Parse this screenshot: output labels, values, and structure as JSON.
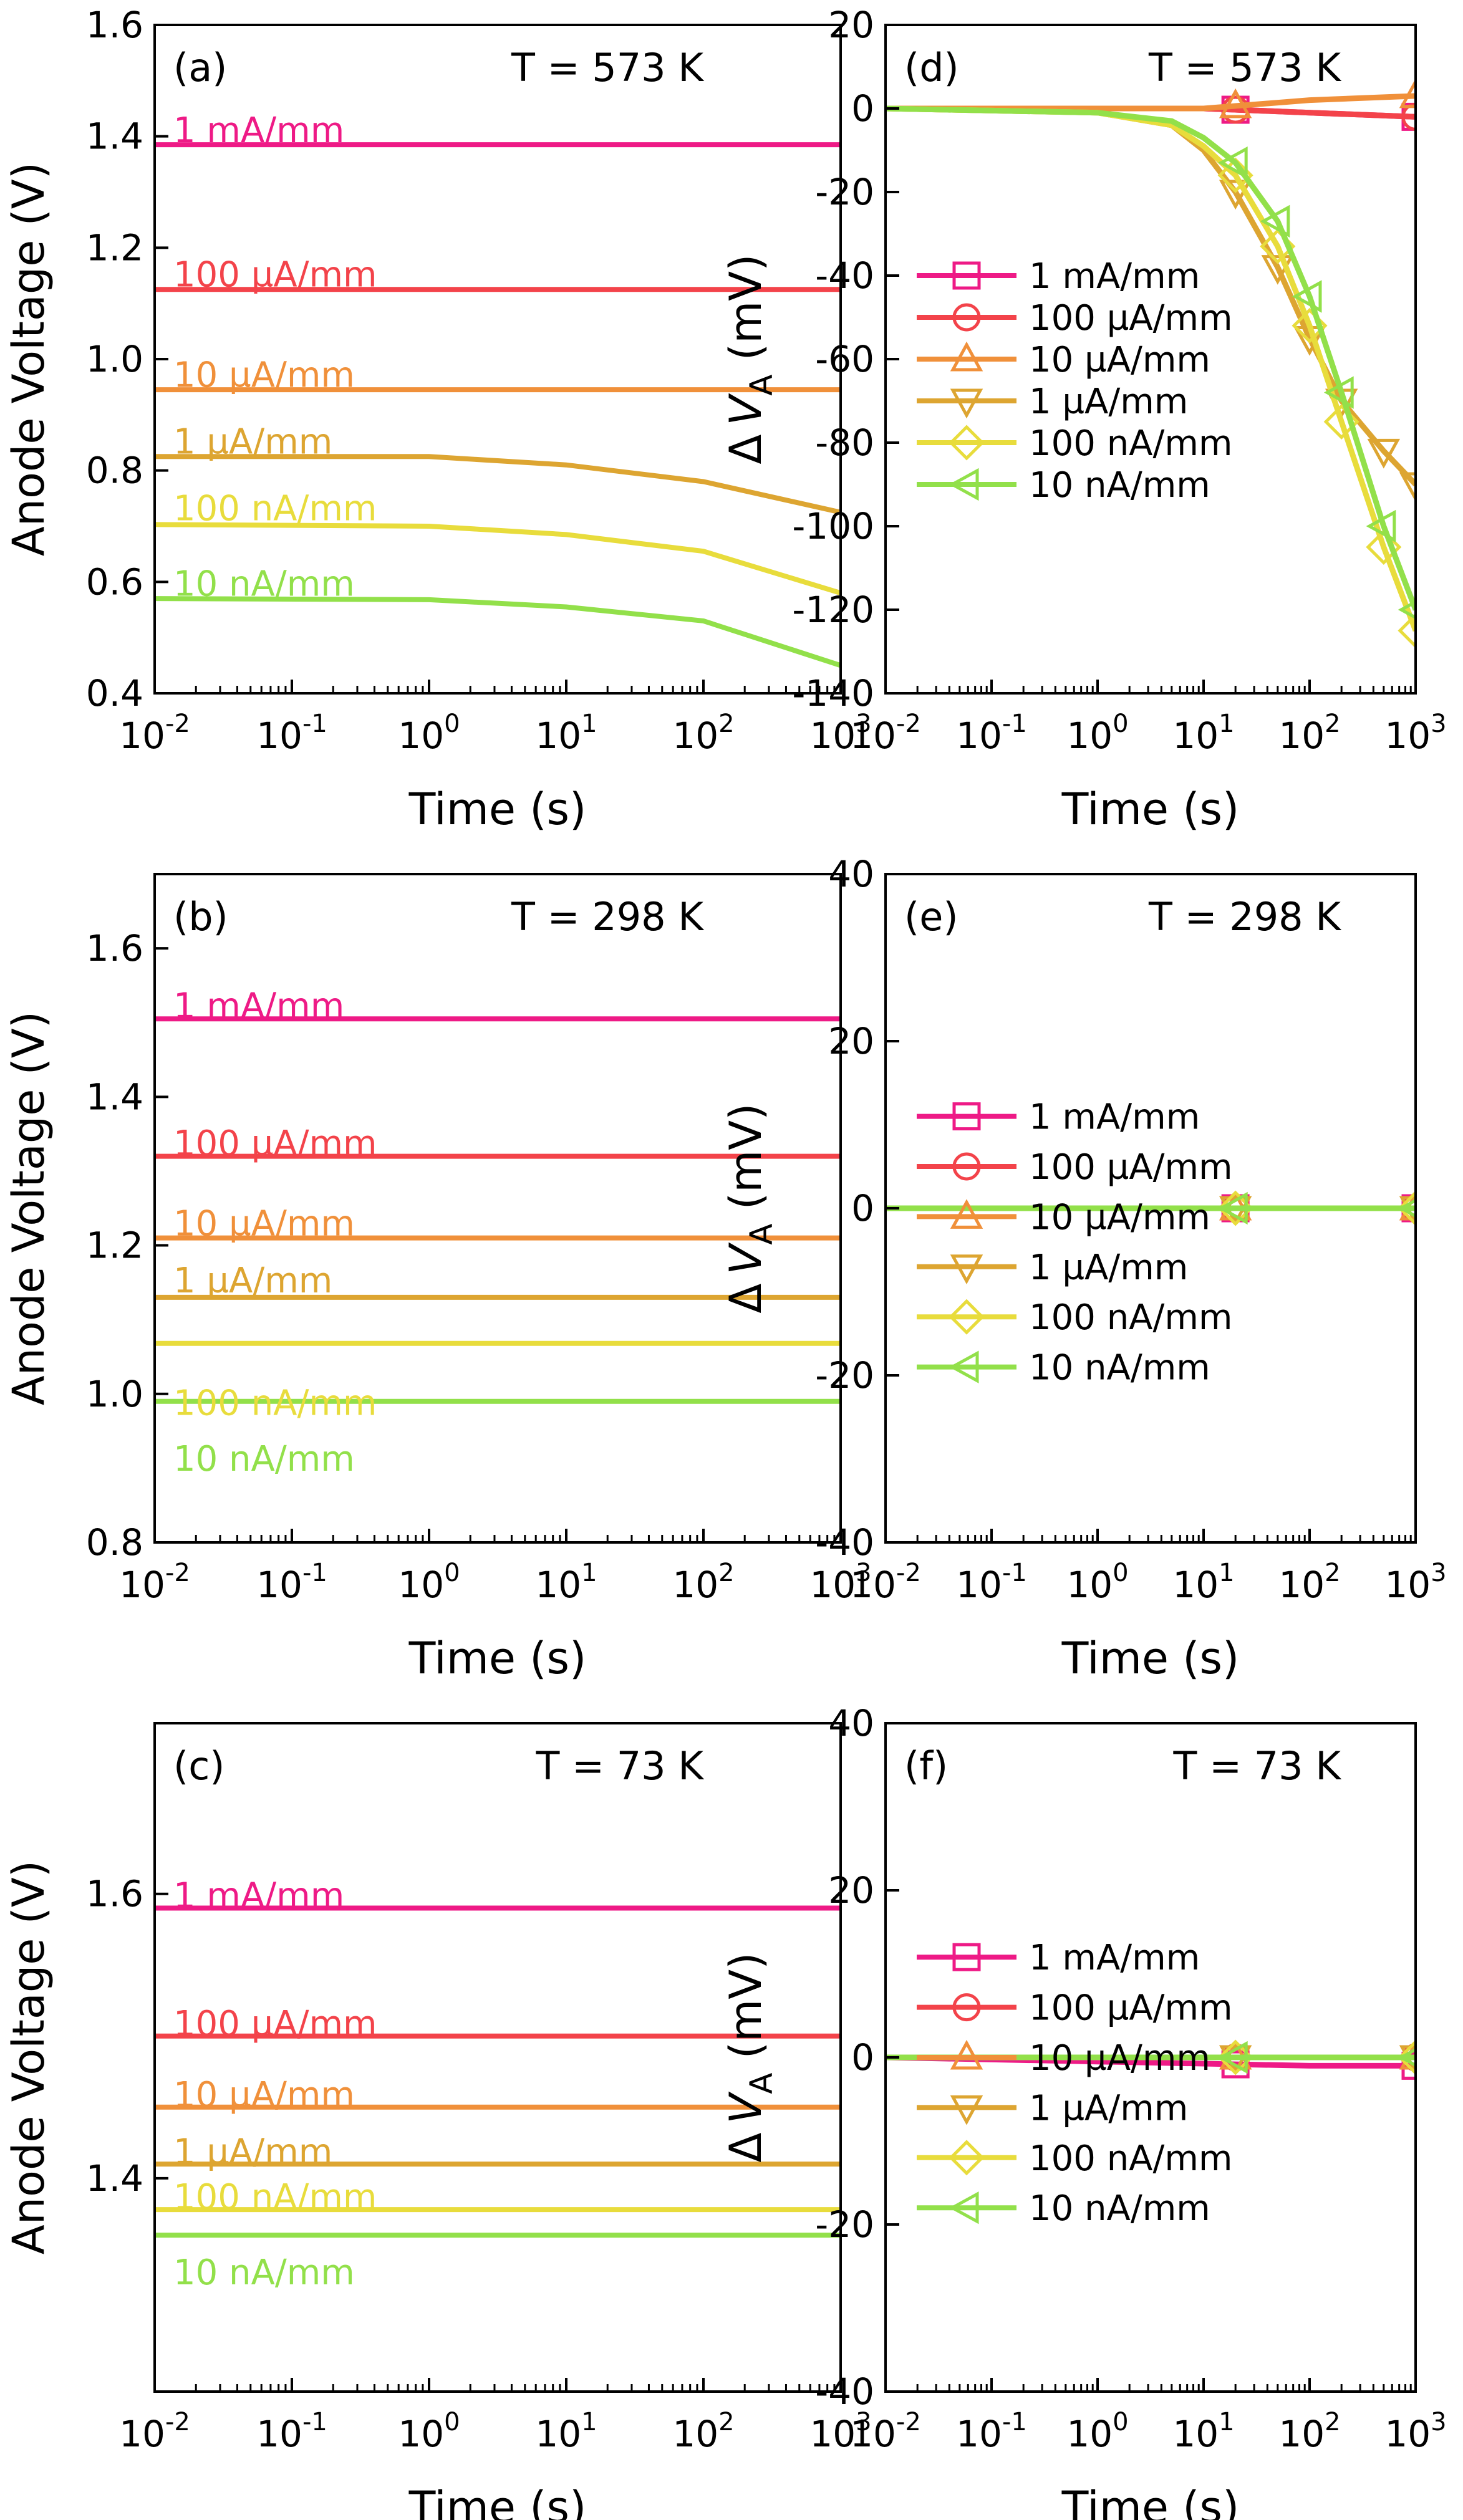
{
  "colors": {
    "1 mA/mm": "#ee1a86",
    "100 µA/mm": "#f3434a",
    "10 µA/mm": "#f0903a",
    "1 µA/mm": "#dda531",
    "100 nA/mm": "#e8dc3c",
    "10 nA/mm": "#92e04a"
  },
  "chart_data": [
    {
      "id": "a",
      "type": "line",
      "panel_label": "(a)",
      "temperature": "T = 573 K",
      "xlabel": "Time (s)",
      "ylabel": "Anode Voltage (V)",
      "xscale": "log",
      "xlim": [
        0.01,
        1000
      ],
      "ylim": [
        0.4,
        1.6
      ],
      "xticks": [
        {
          "base": "10",
          "exp": "-2"
        },
        {
          "base": "10",
          "exp": "-1"
        },
        {
          "base": "10",
          "exp": "0"
        },
        {
          "base": "10",
          "exp": "1"
        },
        {
          "base": "10",
          "exp": "2"
        },
        {
          "base": "10",
          "exp": "3"
        }
      ],
      "yticks": [
        "0.4",
        "0.6",
        "0.8",
        "1.0",
        "1.2",
        "1.4",
        "1.6"
      ],
      "ytick_values": [
        0.4,
        0.6,
        0.8,
        1.0,
        1.2,
        1.4,
        1.6
      ],
      "series": [
        {
          "name": "1 mA/mm",
          "x": [
            0.01,
            1000
          ],
          "y": [
            1.385,
            1.385
          ],
          "label_y": 1.414
        },
        {
          "name": "100 µA/mm",
          "x": [
            0.01,
            1000
          ],
          "y": [
            1.125,
            1.125
          ],
          "label_y": 1.155
        },
        {
          "name": "10 µA/mm",
          "x": [
            0.01,
            1000
          ],
          "y": [
            0.945,
            0.945
          ],
          "label_y": 0.975
        },
        {
          "name": "1 µA/mm",
          "x": [
            0.01,
            1,
            10,
            100,
            1000
          ],
          "y": [
            0.825,
            0.825,
            0.81,
            0.78,
            0.725
          ],
          "label_y": 0.855
        },
        {
          "name": "100 nA/mm",
          "x": [
            0.01,
            1,
            10,
            100,
            1000
          ],
          "y": [
            0.703,
            0.7,
            0.685,
            0.655,
            0.58
          ],
          "label_y": 0.735
        },
        {
          "name": "10 nA/mm",
          "x": [
            0.01,
            1,
            10,
            100,
            1000
          ],
          "y": [
            0.57,
            0.568,
            0.555,
            0.53,
            0.45
          ],
          "label_y": 0.6
        }
      ]
    },
    {
      "id": "b",
      "type": "line",
      "panel_label": "(b)",
      "temperature": "T = 298 K",
      "xlabel": "Time (s)",
      "ylabel": "Anode Voltage (V)",
      "xscale": "log",
      "xlim": [
        0.01,
        1000
      ],
      "ylim": [
        0.8,
        1.7
      ],
      "xticks": [
        {
          "base": "10",
          "exp": "-2"
        },
        {
          "base": "10",
          "exp": "-1"
        },
        {
          "base": "10",
          "exp": "0"
        },
        {
          "base": "10",
          "exp": "1"
        },
        {
          "base": "10",
          "exp": "2"
        },
        {
          "base": "10",
          "exp": "3"
        }
      ],
      "yticks": [
        "0.8",
        "1.0",
        "1.2",
        "1.4",
        "1.6"
      ],
      "ytick_values": [
        0.8,
        1.0,
        1.2,
        1.4,
        1.6
      ],
      "series": [
        {
          "name": "1 mA/mm",
          "x": [
            0.01,
            1000
          ],
          "y": [
            1.505,
            1.505
          ],
          "label_y": 1.525
        },
        {
          "name": "100 µA/mm",
          "x": [
            0.01,
            1000
          ],
          "y": [
            1.32,
            1.32
          ],
          "label_y": 1.34
        },
        {
          "name": "10 µA/mm",
          "x": [
            0.01,
            1000
          ],
          "y": [
            1.21,
            1.21
          ],
          "label_y": 1.232
        },
        {
          "name": "1 µA/mm",
          "x": [
            0.01,
            1000
          ],
          "y": [
            1.13,
            1.13
          ],
          "label_y": 1.155
        },
        {
          "name": "100 nA/mm",
          "x": [
            0.01,
            1000
          ],
          "y": [
            1.068,
            1.068
          ],
          "label_y": 0.99
        },
        {
          "name": "10 nA/mm",
          "x": [
            0.01,
            1000
          ],
          "y": [
            0.99,
            0.99
          ],
          "label_y": 0.915
        }
      ]
    },
    {
      "id": "c",
      "type": "line",
      "panel_label": "(c)",
      "temperature": "T = 73 K",
      "xlabel": "Time (s)",
      "ylabel": "Anode Voltage (V)",
      "xscale": "log",
      "xlim": [
        0.01,
        1000
      ],
      "ylim": [
        1.25,
        1.72
      ],
      "xticks": [
        {
          "base": "10",
          "exp": "-2"
        },
        {
          "base": "10",
          "exp": "-1"
        },
        {
          "base": "10",
          "exp": "0"
        },
        {
          "base": "10",
          "exp": "1"
        },
        {
          "base": "10",
          "exp": "2"
        },
        {
          "base": "10",
          "exp": "3"
        }
      ],
      "yticks": [
        "1.4",
        "1.6"
      ],
      "ytick_values": [
        1.4,
        1.6
      ],
      "series": [
        {
          "name": "1 mA/mm",
          "x": [
            0.01,
            1000
          ],
          "y": [
            1.59,
            1.59
          ],
          "label_y": 1.6
        },
        {
          "name": "100 µA/mm",
          "x": [
            0.01,
            1000
          ],
          "y": [
            1.5,
            1.5
          ],
          "label_y": 1.51
        },
        {
          "name": "10 µA/mm",
          "x": [
            0.01,
            1000
          ],
          "y": [
            1.45,
            1.45
          ],
          "label_y": 1.46
        },
        {
          "name": "1 µA/mm",
          "x": [
            0.01,
            1000
          ],
          "y": [
            1.41,
            1.41
          ],
          "label_y": 1.42
        },
        {
          "name": "100 nA/mm",
          "x": [
            0.01,
            1000
          ],
          "y": [
            1.378,
            1.378
          ],
          "label_y": 1.388
        },
        {
          "name": "10 nA/mm",
          "x": [
            0.01,
            1000
          ],
          "y": [
            1.36,
            1.36
          ],
          "label_y": 1.335
        }
      ]
    },
    {
      "id": "d",
      "type": "line",
      "panel_label": "(d)",
      "temperature": "T = 573 K",
      "xlabel": "Time (s)",
      "ylabel_prefix": "Δ",
      "ylabel_var": "V",
      "ylabel_sub": "A",
      "ylabel_unit": " (mV)",
      "xscale": "log",
      "xlim": [
        0.01,
        1000
      ],
      "ylim": [
        -140,
        20
      ],
      "xticks": [
        {
          "base": "10",
          "exp": "-2"
        },
        {
          "base": "10",
          "exp": "-1"
        },
        {
          "base": "10",
          "exp": "0"
        },
        {
          "base": "10",
          "exp": "1"
        },
        {
          "base": "10",
          "exp": "2"
        },
        {
          "base": "10",
          "exp": "3"
        }
      ],
      "yticks": [
        "-140",
        "-120",
        "-100",
        "-80",
        "-60",
        "-40",
        "-20",
        "0",
        "20"
      ],
      "ytick_values": [
        -140,
        -120,
        -100,
        -80,
        -60,
        -40,
        -20,
        0,
        20
      ],
      "legend_position": "center-left",
      "series": [
        {
          "name": "1 mA/mm",
          "marker": "square",
          "x": [
            0.01,
            1,
            10,
            100,
            1000
          ],
          "y": [
            0,
            0,
            0,
            -1,
            -2
          ],
          "marker_x": [
            20,
            1000
          ]
        },
        {
          "name": "100 µA/mm",
          "marker": "circle",
          "x": [
            0.01,
            1,
            10,
            100,
            1000
          ],
          "y": [
            0,
            0,
            0,
            -1,
            -2
          ],
          "marker_x": [
            20,
            1000
          ]
        },
        {
          "name": "10 µA/mm",
          "marker": "triangle-up",
          "x": [
            0.01,
            1,
            10,
            100,
            1000
          ],
          "y": [
            0,
            0,
            0,
            2,
            3
          ],
          "marker_x": [
            20,
            1000
          ]
        },
        {
          "name": "1 µA/mm",
          "marker": "triangle-down",
          "x": [
            0.01,
            1,
            5,
            10,
            20,
            50,
            100,
            200,
            500,
            1000
          ],
          "y": [
            0,
            -1,
            -4,
            -10,
            -20,
            -38,
            -55,
            -70,
            -82,
            -90
          ],
          "marker_x": [
            20,
            50,
            100,
            200,
            500,
            1000
          ]
        },
        {
          "name": "100 nA/mm",
          "marker": "diamond",
          "x": [
            0.01,
            1,
            5,
            10,
            20,
            50,
            100,
            200,
            500,
            1000
          ],
          "y": [
            0,
            -1,
            -4,
            -9,
            -16,
            -33,
            -52,
            -75,
            -105,
            -125
          ],
          "marker_x": [
            20,
            50,
            100,
            200,
            500,
            1000
          ]
        },
        {
          "name": "10 nA/mm",
          "marker": "triangle-left",
          "x": [
            0.01,
            1,
            5,
            10,
            20,
            50,
            100,
            200,
            500,
            1000
          ],
          "y": [
            0,
            -1,
            -3,
            -7,
            -13,
            -27,
            -45,
            -68,
            -100,
            -120
          ],
          "marker_x": [
            20,
            50,
            100,
            200,
            500,
            1000
          ]
        }
      ]
    },
    {
      "id": "e",
      "type": "line",
      "panel_label": "(e)",
      "temperature": "T = 298 K",
      "xlabel": "Time (s)",
      "ylabel_prefix": "Δ",
      "ylabel_var": "V",
      "ylabel_sub": "A",
      "ylabel_unit": " (mV)",
      "xscale": "log",
      "xlim": [
        0.01,
        1000
      ],
      "ylim": [
        -40,
        40
      ],
      "xticks": [
        {
          "base": "10",
          "exp": "-2"
        },
        {
          "base": "10",
          "exp": "-1"
        },
        {
          "base": "10",
          "exp": "0"
        },
        {
          "base": "10",
          "exp": "1"
        },
        {
          "base": "10",
          "exp": "2"
        },
        {
          "base": "10",
          "exp": "3"
        }
      ],
      "yticks": [
        "-40",
        "-20",
        "0",
        "20",
        "40"
      ],
      "ytick_values": [
        -40,
        -20,
        0,
        20,
        40
      ],
      "legend_position": "center-left",
      "series": [
        {
          "name": "1 mA/mm",
          "marker": "square",
          "x": [
            0.01,
            1000
          ],
          "y": [
            0,
            0
          ],
          "marker_x": [
            20,
            1000
          ]
        },
        {
          "name": "100 µA/mm",
          "marker": "circle",
          "x": [
            0.01,
            1000
          ],
          "y": [
            0,
            0
          ],
          "marker_x": [
            20,
            1000
          ]
        },
        {
          "name": "10 µA/mm",
          "marker": "triangle-up",
          "x": [
            0.01,
            1000
          ],
          "y": [
            0,
            0
          ],
          "marker_x": [
            20,
            1000
          ]
        },
        {
          "name": "1 µA/mm",
          "marker": "triangle-down",
          "x": [
            0.01,
            1000
          ],
          "y": [
            0,
            0
          ],
          "marker_x": [
            20,
            1000
          ]
        },
        {
          "name": "100 nA/mm",
          "marker": "diamond",
          "x": [
            0.01,
            1000
          ],
          "y": [
            0,
            0
          ],
          "marker_x": [
            20,
            1000
          ]
        },
        {
          "name": "10 nA/mm",
          "marker": "triangle-left",
          "x": [
            0.01,
            1000
          ],
          "y": [
            0,
            0
          ],
          "marker_x": [
            20,
            1000
          ]
        }
      ]
    },
    {
      "id": "f",
      "type": "line",
      "panel_label": "(f)",
      "temperature": "T = 73 K",
      "xlabel": "Time (s)",
      "ylabel_prefix": "Δ",
      "ylabel_var": "V",
      "ylabel_sub": "A",
      "ylabel_unit": " (mV)",
      "xscale": "log",
      "xlim": [
        0.01,
        1000
      ],
      "ylim": [
        -40,
        40
      ],
      "xticks": [
        {
          "base": "10",
          "exp": "-2"
        },
        {
          "base": "10",
          "exp": "-1"
        },
        {
          "base": "10",
          "exp": "0"
        },
        {
          "base": "10",
          "exp": "1"
        },
        {
          "base": "10",
          "exp": "2"
        },
        {
          "base": "10",
          "exp": "3"
        }
      ],
      "yticks": [
        "-40",
        "-20",
        "0",
        "20",
        "40"
      ],
      "ytick_values": [
        -40,
        -20,
        0,
        20,
        40
      ],
      "legend_position": "center-left",
      "series": [
        {
          "name": "1 mA/mm",
          "marker": "square",
          "x": [
            0.01,
            100,
            1000
          ],
          "y": [
            0,
            -1,
            -1
          ],
          "marker_x": [
            20,
            1000
          ]
        },
        {
          "name": "100 µA/mm",
          "marker": "circle",
          "x": [
            0.01,
            1000
          ],
          "y": [
            0,
            0
          ],
          "marker_x": [
            20,
            1000
          ]
        },
        {
          "name": "10 µA/mm",
          "marker": "triangle-up",
          "x": [
            0.01,
            1000
          ],
          "y": [
            0,
            0
          ],
          "marker_x": [
            20,
            1000
          ]
        },
        {
          "name": "1 µA/mm",
          "marker": "triangle-down",
          "x": [
            0.01,
            1000
          ],
          "y": [
            0,
            0
          ],
          "marker_x": [
            20,
            1000
          ]
        },
        {
          "name": "100 nA/mm",
          "marker": "diamond",
          "x": [
            0.01,
            1000
          ],
          "y": [
            0,
            0
          ],
          "marker_x": [
            20,
            1000
          ]
        },
        {
          "name": "10 nA/mm",
          "marker": "triangle-left",
          "x": [
            0.01,
            1000
          ],
          "y": [
            0,
            0
          ],
          "marker_x": [
            20,
            1000
          ]
        }
      ]
    }
  ]
}
